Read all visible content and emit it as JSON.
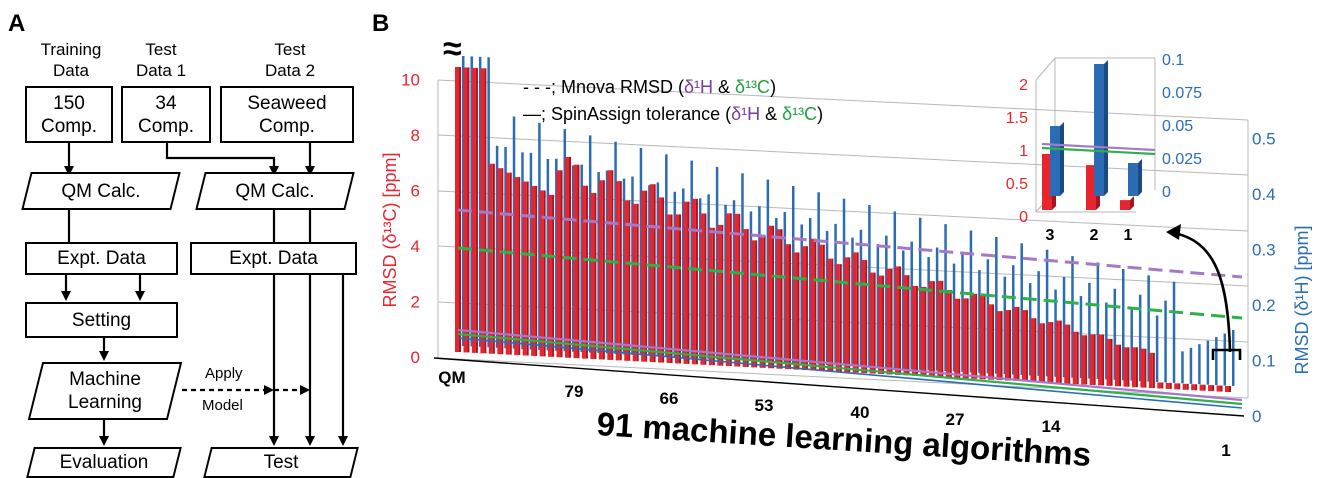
{
  "panel_a": {
    "label": "A",
    "headers": [
      "Training\nData",
      "Test\nData 1",
      "Test\nData 2"
    ],
    "boxes": {
      "train_data": "150\nComp.",
      "test1": "34\nComp.",
      "test2": "Seaweed\nComp.",
      "qm_left": "QM Calc.",
      "qm_right": "QM Calc.",
      "expt_left": "Expt. Data",
      "expt_right": "Expt. Data",
      "setting": "Setting",
      "ml": "Machine\nLearning",
      "evaluation": "Evaluation",
      "test": "Test"
    },
    "apply_model": [
      "Apply",
      "Model"
    ]
  },
  "panel_b": {
    "label": "B",
    "break_symbol": "≈",
    "legend": {
      "dashed": "- - -; Mnova RMSD (",
      "solid": "—; SpinAssign tolerance (",
      "d1h": "δ¹H",
      "amp": " & ",
      "d13c": "δ¹³C",
      "close": ")"
    },
    "left_axis": {
      "label": "RMSD (δ¹³C) [ppm]",
      "ticks": [
        "0",
        "2",
        "4",
        "6",
        "8",
        "10"
      ]
    },
    "right_axis": {
      "label": "RMSD (δ¹H) [ppm]",
      "ticks": [
        "0",
        "0.1",
        "0.2",
        "0.3",
        "0.4",
        "0.5"
      ]
    },
    "x_axis": {
      "title": "91 machine learning algorithms",
      "ticks": [
        "QM",
        "79",
        "66",
        "53",
        "40",
        "27",
        "14",
        "1"
      ]
    },
    "inset": {
      "left_ticks": [
        "0",
        "0.5",
        "1",
        "1.5",
        "2"
      ],
      "right_ticks": [
        "0",
        "0.025",
        "0.05",
        "0.075",
        "0.1"
      ],
      "x_ticks": [
        "3",
        "2",
        "1"
      ],
      "c13_values": [
        0.85,
        0.68,
        0.15
      ],
      "h1_values": [
        0.053,
        0.1,
        0.025
      ]
    },
    "colors": {
      "red": "#e8252f",
      "blue": "#2b6cb5",
      "purple": "#a678c8",
      "green": "#2db24a"
    }
  }
}
